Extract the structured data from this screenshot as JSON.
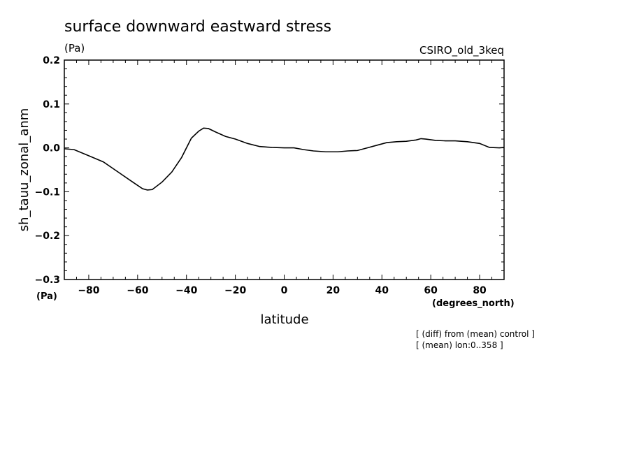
{
  "chart_data": {
    "type": "line",
    "title": "surface downward eastward stress",
    "units_top": "(Pa)",
    "model_label": "CSIRO_old_3keq",
    "ylabel": "sh_tauu_zonal_anm",
    "y_units": "(Pa)",
    "xlabel": "latitude",
    "x_units": "(degrees_north)",
    "xlim": [
      -90,
      90
    ],
    "ylim": [
      -0.3,
      0.2
    ],
    "x_ticks": [
      -80,
      -60,
      -40,
      -20,
      0,
      20,
      40,
      60,
      80
    ],
    "x_tick_labels": [
      "−80",
      "−60",
      "−40",
      "−20",
      "0",
      "20",
      "40",
      "60",
      "80"
    ],
    "y_ticks": [
      0.2,
      0.1,
      0.0,
      -0.1,
      -0.2,
      -0.3
    ],
    "y_tick_labels": [
      "0.2",
      "0.1",
      "0.0",
      "−0.1",
      "−0.2",
      "−0.3"
    ],
    "notes": [
      "[ (diff) from (mean) control ]",
      "[ (mean) lon:0..358 ]"
    ],
    "grid": false,
    "series": [
      {
        "x": [
          -90,
          -86,
          -80,
          -74,
          -68,
          -62,
          -58,
          -56,
          -54,
          -50,
          -46,
          -42,
          -38,
          -35,
          -33,
          -31,
          -28,
          -24,
          -20,
          -15,
          -10,
          -5,
          0,
          4,
          8,
          12,
          17,
          22,
          26,
          30,
          34,
          38,
          42,
          46,
          50,
          54,
          56,
          58,
          62,
          66,
          70,
          75,
          80,
          84,
          88,
          90
        ],
        "y": [
          -0.002,
          -0.004,
          -0.018,
          -0.032,
          -0.055,
          -0.078,
          -0.093,
          -0.096,
          -0.095,
          -0.078,
          -0.055,
          -0.022,
          0.022,
          0.038,
          0.045,
          0.044,
          0.036,
          0.026,
          0.02,
          0.01,
          0.003,
          0.001,
          0.0,
          0.0,
          -0.004,
          -0.007,
          -0.009,
          -0.009,
          -0.007,
          -0.006,
          0.0,
          0.006,
          0.012,
          0.014,
          0.015,
          0.018,
          0.021,
          0.02,
          0.017,
          0.016,
          0.016,
          0.014,
          0.01,
          0.001,
          0.0,
          0.001
        ]
      }
    ]
  }
}
